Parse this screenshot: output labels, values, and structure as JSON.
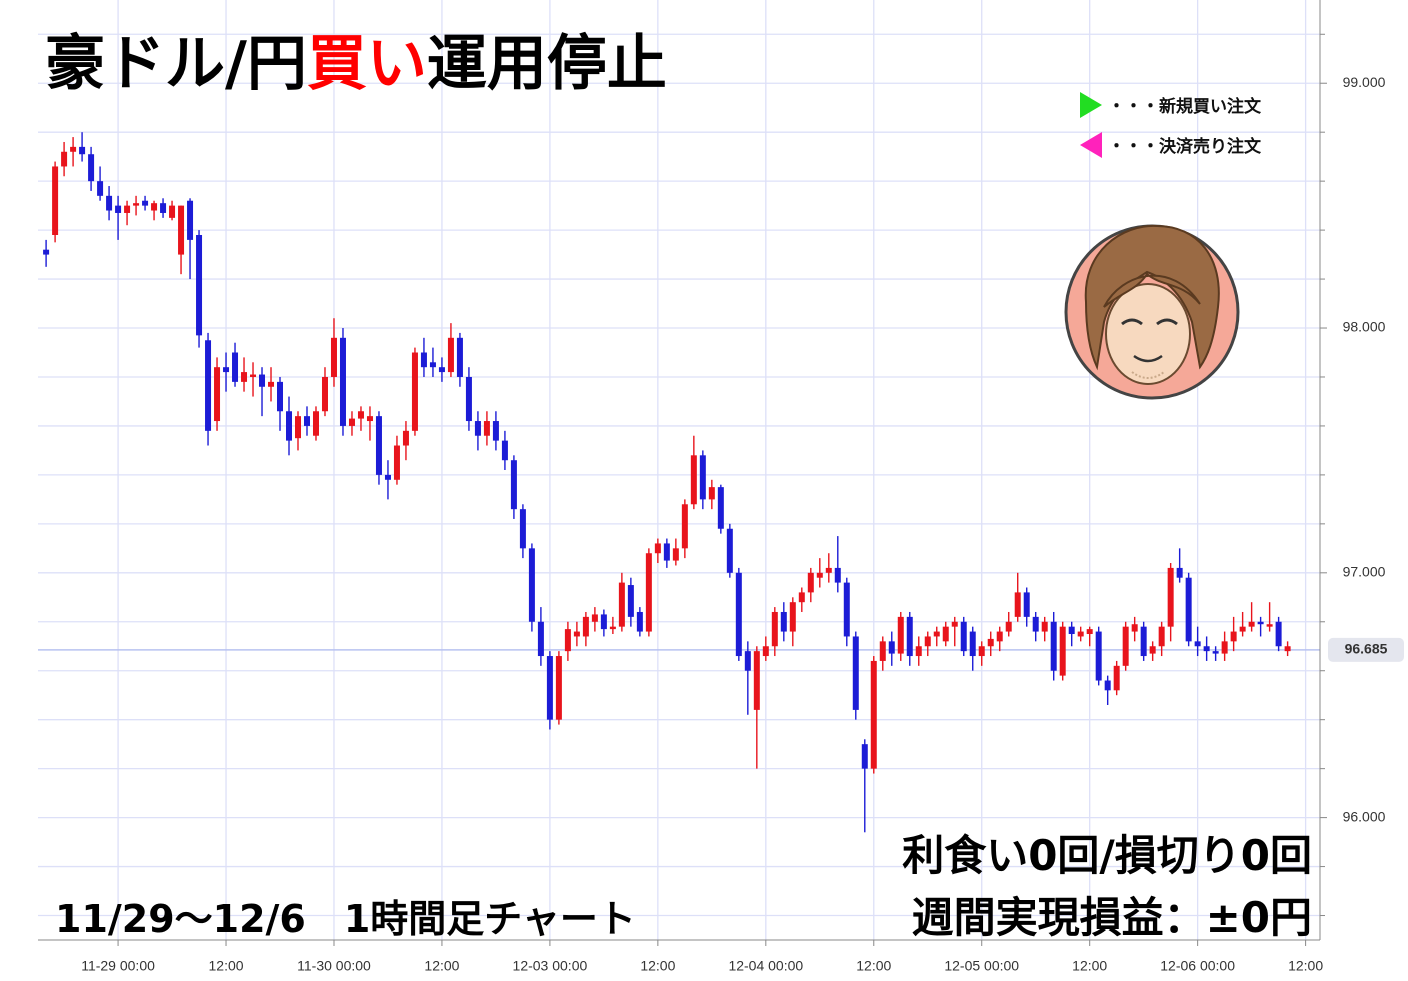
{
  "chart_data": {
    "type": "candlestick",
    "title": [
      {
        "text": "豪ドル/円",
        "color": "#000000"
      },
      {
        "text": "買い",
        "color": "#ff0000"
      },
      {
        "text": "運用停止",
        "color": "#000000"
      }
    ],
    "legend": [
      {
        "label": "・・・新規買い注文",
        "color": "#22dd22",
        "marker": "right"
      },
      {
        "label": "・・・決済売り注文",
        "color": "#ff22bb",
        "marker": "left"
      }
    ],
    "annotations": {
      "period": "11/29～12/6　1時間足チャート",
      "trades": "利食い0回/損切り0回",
      "profit": "週間実現損益：±0円"
    },
    "up_color": "#e8141c",
    "down_color": "#1c1cd6",
    "xlim": [
      -0.9,
      141.6
    ],
    "xticks": [
      {
        "value": 8,
        "label": "11-29 00:00"
      },
      {
        "value": 20,
        "label": "12:00"
      },
      {
        "value": 32,
        "label": "11-30 00:00"
      },
      {
        "value": 44,
        "label": "12:00"
      },
      {
        "value": 56,
        "label": "12-03 00:00"
      },
      {
        "value": 68,
        "label": "12:00"
      },
      {
        "value": 80,
        "label": "12-04 00:00"
      },
      {
        "value": 92,
        "label": "12:00"
      },
      {
        "value": 104,
        "label": "12-05 00:00"
      },
      {
        "value": 116,
        "label": "12:00"
      },
      {
        "value": 128,
        "label": "12-06 00:00"
      },
      {
        "value": 140,
        "label": "12:00"
      }
    ],
    "ylim": [
      95.5,
      99.34
    ],
    "yticks": [
      {
        "value": 96,
        "label": "96.000"
      },
      {
        "value": 97,
        "label": "97.000"
      },
      {
        "value": 98,
        "label": "98.000"
      },
      {
        "value": 99,
        "label": "99.000"
      }
    ],
    "y_minor_ticks": [
      95.6,
      95.8,
      96.2,
      96.4,
      96.6,
      96.8,
      97.2,
      97.4,
      97.6,
      97.8,
      98.2,
      98.4,
      98.6,
      98.8,
      99.2
    ],
    "grid": true,
    "price_line": {
      "value": 96.685,
      "label": "96.685"
    },
    "ohlc": [
      [
        98.32,
        98.36,
        98.25,
        98.3
      ],
      [
        98.38,
        98.68,
        98.35,
        98.66
      ],
      [
        98.66,
        98.76,
        98.62,
        98.72
      ],
      [
        98.72,
        98.78,
        98.66,
        98.74
      ],
      [
        98.74,
        98.8,
        98.68,
        98.71
      ],
      [
        98.71,
        98.74,
        98.56,
        98.6
      ],
      [
        98.6,
        98.66,
        98.52,
        98.54
      ],
      [
        98.54,
        98.58,
        98.44,
        98.48
      ],
      [
        98.5,
        98.54,
        98.36,
        98.47
      ],
      [
        98.47,
        98.52,
        98.42,
        98.5
      ],
      [
        98.5,
        98.54,
        98.46,
        98.51
      ],
      [
        98.52,
        98.54,
        98.48,
        98.5
      ],
      [
        98.48,
        98.52,
        98.44,
        98.51
      ],
      [
        98.51,
        98.53,
        98.45,
        98.47
      ],
      [
        98.45,
        98.52,
        98.44,
        98.5
      ],
      [
        98.3,
        98.5,
        98.22,
        98.5
      ],
      [
        98.52,
        98.53,
        98.2,
        98.36
      ],
      [
        98.38,
        98.4,
        97.92,
        97.97
      ],
      [
        97.95,
        97.98,
        97.52,
        97.58
      ],
      [
        97.62,
        97.88,
        97.58,
        97.84
      ],
      [
        97.84,
        97.9,
        97.74,
        97.82
      ],
      [
        97.9,
        97.94,
        97.76,
        97.78
      ],
      [
        97.78,
        97.88,
        97.74,
        97.82
      ],
      [
        97.8,
        97.86,
        97.72,
        97.81
      ],
      [
        97.81,
        97.84,
        97.64,
        97.76
      ],
      [
        97.76,
        97.84,
        97.7,
        97.78
      ],
      [
        97.78,
        97.8,
        97.58,
        97.66
      ],
      [
        97.66,
        97.72,
        97.48,
        97.54
      ],
      [
        97.55,
        97.66,
        97.5,
        97.64
      ],
      [
        97.64,
        97.68,
        97.56,
        97.6
      ],
      [
        97.56,
        97.68,
        97.54,
        97.66
      ],
      [
        97.66,
        97.84,
        97.64,
        97.8
      ],
      [
        97.8,
        98.04,
        97.76,
        97.96
      ],
      [
        97.96,
        98.0,
        97.56,
        97.6
      ],
      [
        97.6,
        97.66,
        97.56,
        97.63
      ],
      [
        97.63,
        97.68,
        97.58,
        97.66
      ],
      [
        97.62,
        97.68,
        97.54,
        97.64
      ],
      [
        97.64,
        97.66,
        97.36,
        97.4
      ],
      [
        97.4,
        97.46,
        97.3,
        97.38
      ],
      [
        97.38,
        97.56,
        97.36,
        97.52
      ],
      [
        97.52,
        97.62,
        97.46,
        97.58
      ],
      [
        97.58,
        97.92,
        97.56,
        97.9
      ],
      [
        97.9,
        97.96,
        97.8,
        97.84
      ],
      [
        97.86,
        97.92,
        97.8,
        97.84
      ],
      [
        97.84,
        97.88,
        97.78,
        97.82
      ],
      [
        97.82,
        98.02,
        97.8,
        97.96
      ],
      [
        97.96,
        97.98,
        97.76,
        97.8
      ],
      [
        97.8,
        97.84,
        97.58,
        97.62
      ],
      [
        97.62,
        97.66,
        97.5,
        97.56
      ],
      [
        97.56,
        97.66,
        97.52,
        97.62
      ],
      [
        97.62,
        97.66,
        97.5,
        97.54
      ],
      [
        97.54,
        97.58,
        97.42,
        97.46
      ],
      [
        97.46,
        97.48,
        97.22,
        97.26
      ],
      [
        97.26,
        97.28,
        97.06,
        97.1
      ],
      [
        97.1,
        97.12,
        96.76,
        96.8
      ],
      [
        96.8,
        96.86,
        96.62,
        96.66
      ],
      [
        96.66,
        96.68,
        96.36,
        96.4
      ],
      [
        96.4,
        96.68,
        96.38,
        96.66
      ],
      [
        96.68,
        96.8,
        96.64,
        96.77
      ],
      [
        96.74,
        96.8,
        96.7,
        96.76
      ],
      [
        96.74,
        96.84,
        96.7,
        96.82
      ],
      [
        96.8,
        96.86,
        96.76,
        96.83
      ],
      [
        96.83,
        96.85,
        96.74,
        96.77
      ],
      [
        96.77,
        96.82,
        96.75,
        96.78
      ],
      [
        96.78,
        97.0,
        96.76,
        96.96
      ],
      [
        96.95,
        96.98,
        96.78,
        96.82
      ],
      [
        96.84,
        96.86,
        96.74,
        96.76
      ],
      [
        96.76,
        97.1,
        96.74,
        97.08
      ],
      [
        97.08,
        97.14,
        97.04,
        97.12
      ],
      [
        97.12,
        97.14,
        97.02,
        97.05
      ],
      [
        97.05,
        97.14,
        97.03,
        97.1
      ],
      [
        97.1,
        97.3,
        97.06,
        97.28
      ],
      [
        97.28,
        97.56,
        97.26,
        97.48
      ],
      [
        97.48,
        97.5,
        97.26,
        97.3
      ],
      [
        97.3,
        97.38,
        97.26,
        97.35
      ],
      [
        97.35,
        97.36,
        97.16,
        97.18
      ],
      [
        97.18,
        97.2,
        96.98,
        97.0
      ],
      [
        97.0,
        97.02,
        96.64,
        96.66
      ],
      [
        96.68,
        96.72,
        96.42,
        96.6
      ],
      [
        96.44,
        96.7,
        96.2,
        96.68
      ],
      [
        96.66,
        96.74,
        96.64,
        96.7
      ],
      [
        96.7,
        96.86,
        96.66,
        96.84
      ],
      [
        96.84,
        96.88,
        96.72,
        96.76
      ],
      [
        96.76,
        96.9,
        96.7,
        96.88
      ],
      [
        96.88,
        96.94,
        96.84,
        96.92
      ],
      [
        96.92,
        97.02,
        96.88,
        97.0
      ],
      [
        96.98,
        97.06,
        96.94,
        97.0
      ],
      [
        97.0,
        97.08,
        96.96,
        97.02
      ],
      [
        97.02,
        97.15,
        96.92,
        96.96
      ],
      [
        96.96,
        96.98,
        96.7,
        96.74
      ],
      [
        96.74,
        96.76,
        96.4,
        96.44
      ],
      [
        96.3,
        96.32,
        95.94,
        96.2
      ],
      [
        96.2,
        96.66,
        96.18,
        96.64
      ],
      [
        96.64,
        96.74,
        96.6,
        96.72
      ],
      [
        96.72,
        96.76,
        96.62,
        96.67
      ],
      [
        96.67,
        96.84,
        96.64,
        96.82
      ],
      [
        96.82,
        96.84,
        96.62,
        96.66
      ],
      [
        96.66,
        96.74,
        96.62,
        96.7
      ],
      [
        96.7,
        96.76,
        96.66,
        96.74
      ],
      [
        96.74,
        96.78,
        96.7,
        96.76
      ],
      [
        96.72,
        96.8,
        96.7,
        96.78
      ],
      [
        96.78,
        96.82,
        96.7,
        96.8
      ],
      [
        96.8,
        96.82,
        96.66,
        96.68
      ],
      [
        96.76,
        96.78,
        96.6,
        96.66
      ],
      [
        96.66,
        96.72,
        96.62,
        96.7
      ],
      [
        96.7,
        96.76,
        96.66,
        96.73
      ],
      [
        96.72,
        96.78,
        96.68,
        96.76
      ],
      [
        96.76,
        96.84,
        96.74,
        96.8
      ],
      [
        96.82,
        97.0,
        96.8,
        96.92
      ],
      [
        96.92,
        96.94,
        96.78,
        96.82
      ],
      [
        96.82,
        96.84,
        96.72,
        96.76
      ],
      [
        96.76,
        96.82,
        96.72,
        96.8
      ],
      [
        96.8,
        96.84,
        96.56,
        96.6
      ],
      [
        96.58,
        96.8,
        96.56,
        96.78
      ],
      [
        96.78,
        96.8,
        96.7,
        96.75
      ],
      [
        96.74,
        96.78,
        96.72,
        96.76
      ],
      [
        96.75,
        96.78,
        96.7,
        96.77
      ],
      [
        96.76,
        96.78,
        96.54,
        96.56
      ],
      [
        96.56,
        96.58,
        96.46,
        96.52
      ],
      [
        96.52,
        96.64,
        96.5,
        96.62
      ],
      [
        96.62,
        96.8,
        96.6,
        96.78
      ],
      [
        96.76,
        96.82,
        96.72,
        96.79
      ],
      [
        96.78,
        96.8,
        96.64,
        96.66
      ],
      [
        96.67,
        96.72,
        96.64,
        96.7
      ],
      [
        96.7,
        96.8,
        96.66,
        96.78
      ],
      [
        96.78,
        97.04,
        96.72,
        97.02
      ],
      [
        97.02,
        97.1,
        96.96,
        96.98
      ],
      [
        96.98,
        97.0,
        96.7,
        96.72
      ],
      [
        96.72,
        96.78,
        96.66,
        96.7
      ],
      [
        96.7,
        96.74,
        96.64,
        96.68
      ],
      [
        96.68,
        96.7,
        96.64,
        96.67
      ],
      [
        96.67,
        96.76,
        96.64,
        96.72
      ],
      [
        96.72,
        96.82,
        96.68,
        96.76
      ],
      [
        96.76,
        96.84,
        96.74,
        96.78
      ],
      [
        96.78,
        96.88,
        96.76,
        96.8
      ],
      [
        96.8,
        96.82,
        96.74,
        96.79
      ],
      [
        96.78,
        96.88,
        96.76,
        96.79
      ],
      [
        96.8,
        96.82,
        96.68,
        96.7
      ],
      [
        96.68,
        96.72,
        96.66,
        96.7
      ]
    ]
  }
}
